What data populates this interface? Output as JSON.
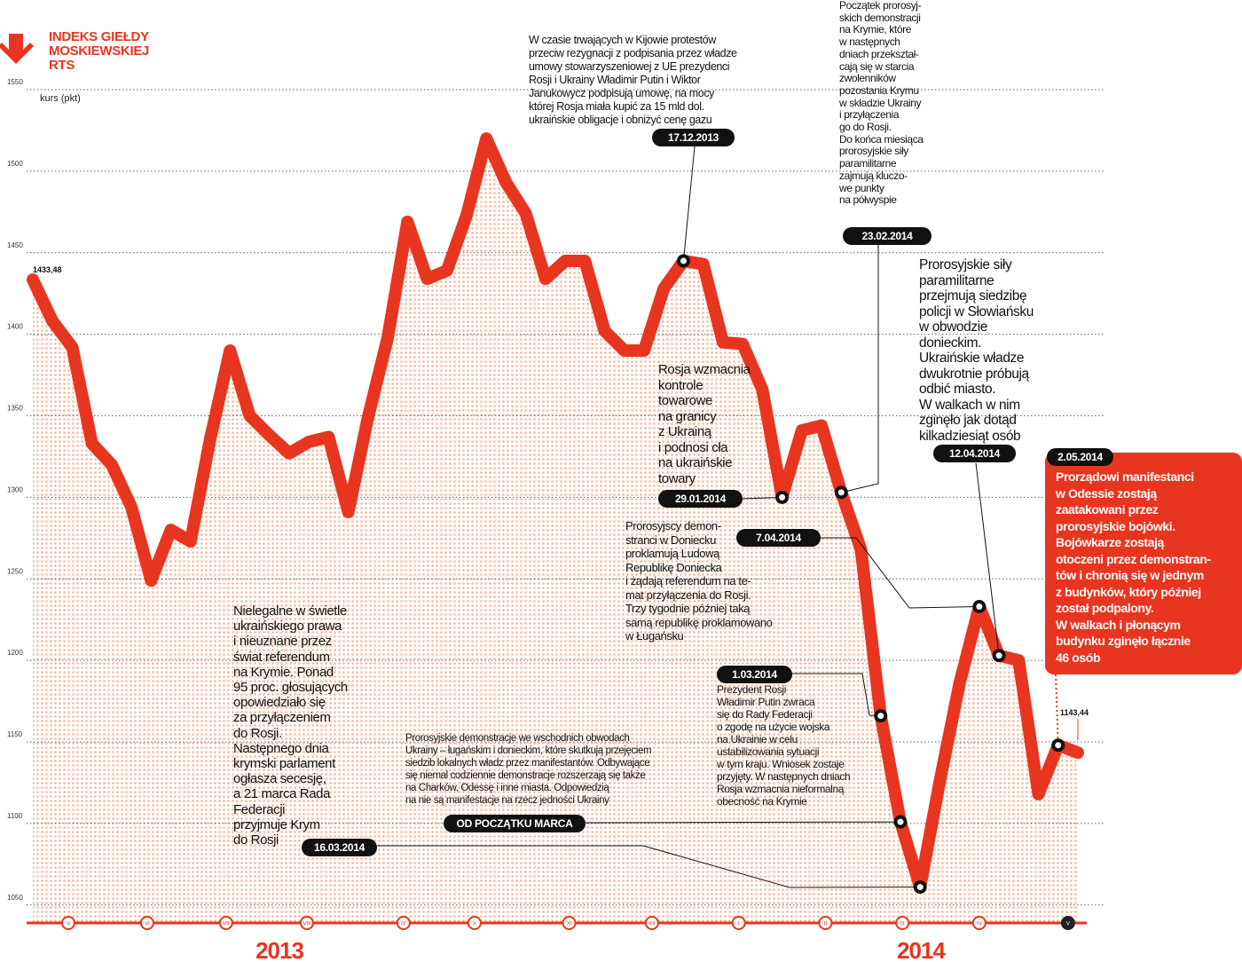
{
  "chart_data": {
    "type": "line",
    "title": "INDEKS GIEŁDY\nMOSKIEWSKIEJ\nRTS",
    "y_label": "kurs (pkt)",
    "color": "#e8351f",
    "values": [
      1433.48,
      1408,
      1392,
      1333,
      1320,
      1294,
      1249,
      1280,
      1273,
      1336,
      1390,
      1350,
      1338,
      1327,
      1334,
      1337,
      1291,
      1349,
      1398,
      1469,
      1434,
      1439,
      1473,
      1520,
      1493,
      1474,
      1434,
      1445,
      1445,
      1402,
      1390,
      1390,
      1428,
      1445,
      1443,
      1395,
      1394,
      1366,
      1300,
      1341,
      1344,
      1303,
      1268,
      1166,
      1101,
      1061,
      1126,
      1186,
      1233,
      1203,
      1200,
      1118,
      1148,
      1143.44
    ],
    "value_labels": [
      "1433,48",
      null,
      null,
      null,
      null,
      null,
      null,
      null,
      null,
      null,
      null,
      null,
      null,
      null,
      null,
      null,
      null,
      null,
      null,
      null,
      null,
      null,
      null,
      null,
      null,
      null,
      null,
      null,
      null,
      null,
      null,
      null,
      null,
      null,
      null,
      null,
      null,
      null,
      null,
      null,
      null,
      null,
      null,
      null,
      null,
      null,
      null,
      null,
      null,
      null,
      null,
      null,
      null,
      "1143,44"
    ],
    "xlim": [
      0,
      53
    ],
    "xticks": [
      {
        "value": 1.8,
        "label": "V"
      },
      {
        "value": 5.8,
        "label": "VI"
      },
      {
        "value": 9.8,
        "label": "VII"
      },
      {
        "value": 13.9,
        "label": "VIII"
      },
      {
        "value": 18.8,
        "label": "IX"
      },
      {
        "value": 22.4,
        "label": "X"
      },
      {
        "value": 27.2,
        "label": "XI"
      },
      {
        "value": 31.4,
        "label": "XII"
      },
      {
        "value": 35.8,
        "label": "I"
      },
      {
        "value": 40.2,
        "label": "II"
      },
      {
        "value": 44.1,
        "label": "III"
      },
      {
        "value": 48.0,
        "label": "IV"
      },
      {
        "value": 52.5,
        "label": "V"
      }
    ],
    "year_labels": [
      "2013",
      "2014"
    ],
    "ylim": [
      1039,
      1560
    ],
    "yticks": [
      1050,
      1100,
      1150,
      1200,
      1250,
      1300,
      1350,
      1400,
      1450,
      1500,
      1550
    ],
    "grid": true,
    "annotations": [
      {
        "date": "17.12.2013",
        "text": "W czasie trwających w Kijowie protestów\nprzeciw rezygnacji z podpisania przez władze\numowy stowarzyszeniowej z UE prezydenci\nRosji i Ukrainy Władimir Putin i Wiktor\nJanukowycz podpisują umowę, na mocy\nktórej Rosja miała kupić za 15 mld dol.\nukraińskie obligacje i obniżyć cenę gazu"
      },
      {
        "date": "23.02.2014",
        "text": "Początek prorosyj-\nskich demonstracji\nna Krymie, które\nw następnych\ndniach przekształ-\ncają się w starcia\nzwolenników\npozostania Krymu\nw składzie Ukrainy\ni przyłączenia\ngo do Rosji.\nDo końca miesiąca\nprorosyjskie siły\nparamilitarne\nzajmują kluczo-\nwe punkty\nna półwyspie"
      },
      {
        "date": "29.01.2014",
        "text": "Rosja wzmacnia\nkontrole\ntowarowe\nna granicy\nz Ukrainą\ni podnosi cła\nna ukraińskie\ntowary"
      },
      {
        "date": "12.04.2014",
        "text": "Prorosyjskie siły\nparamilitarne\nprzejmują siedzibę\npolicji w Słowiańsku\nw obwodzie\ndonieckim.\nUkraińskie władze\ndwukrotnie próbują\nodbić miasto.\nW walkach w nim\nzginęło jak dotąd\nkilkadziesiąt osób"
      },
      {
        "date": "2.05.2014",
        "text": "Prorządowi manifestanci\nw Odessie zostają\nzaatakowani przez\nprorosyjskie bojówki.\nBojówkarze zostają\notoczeni przez demonstran-\ntów i chronią się w jednym\nz budynków, który później\nzostał podpalony.\nW walkach i płonącym\nbudynku zginęło łącznie\n46 osób"
      },
      {
        "date": "7.04.2014",
        "text": "Prorosyjscy demon-\nstranci w Doniecku\nproklamują Ludową\nRepublikę Doniecka\ni żądają referendum na te-\nmat przyłączenia do Rosji.\nTrzy tygodnie później taką\nsamą republikę proklamowano\nw Ługańsku"
      },
      {
        "date": "1.03.2014",
        "text": "Prezydent Rosji\nWładimir Putin zwraca\nsię do Rady Federacji\no zgodę na użycie wojska\nna Ukrainie w celu\nustabilizowania sytuacji\nw tym kraju. Wniosek zostaje\nprzyjęty. W następnych dniach\nRosja wzmacnia nieformalną\nobecność na Krymie"
      },
      {
        "date": "OD POCZĄTKU MARCA",
        "text": "Prorosyjskie demonstracje we wschodnich obwodach\nUkrainy – ługańskim i donieckim, które skutkują przejęciem\nsiedzib lokalnych władz przez manifestantów. Odbywające\nsię niemal codziennie demonstracje rozszerzają się także\nna Charków, Odessę i inne miasta. Odpowiedzią\nna nie są manifestacje na rzecz jedności Ukrainy"
      },
      {
        "date": "16.03.2014",
        "text": "Nielegalne w świetle\nukraińskiego prawa\ni nieuznane przez\nświat referendum\nna Krymie. Ponad\n95 proc. głosujących\nopowiedziało się\nza przyłączeniem\ndo Rosji.\nNastępnego dnia\nkrymski parlament\nogłasza secesję,\na 21 marca Rada\nFederacji\nprzyjmuje Krym\ndo Rosji"
      }
    ]
  }
}
